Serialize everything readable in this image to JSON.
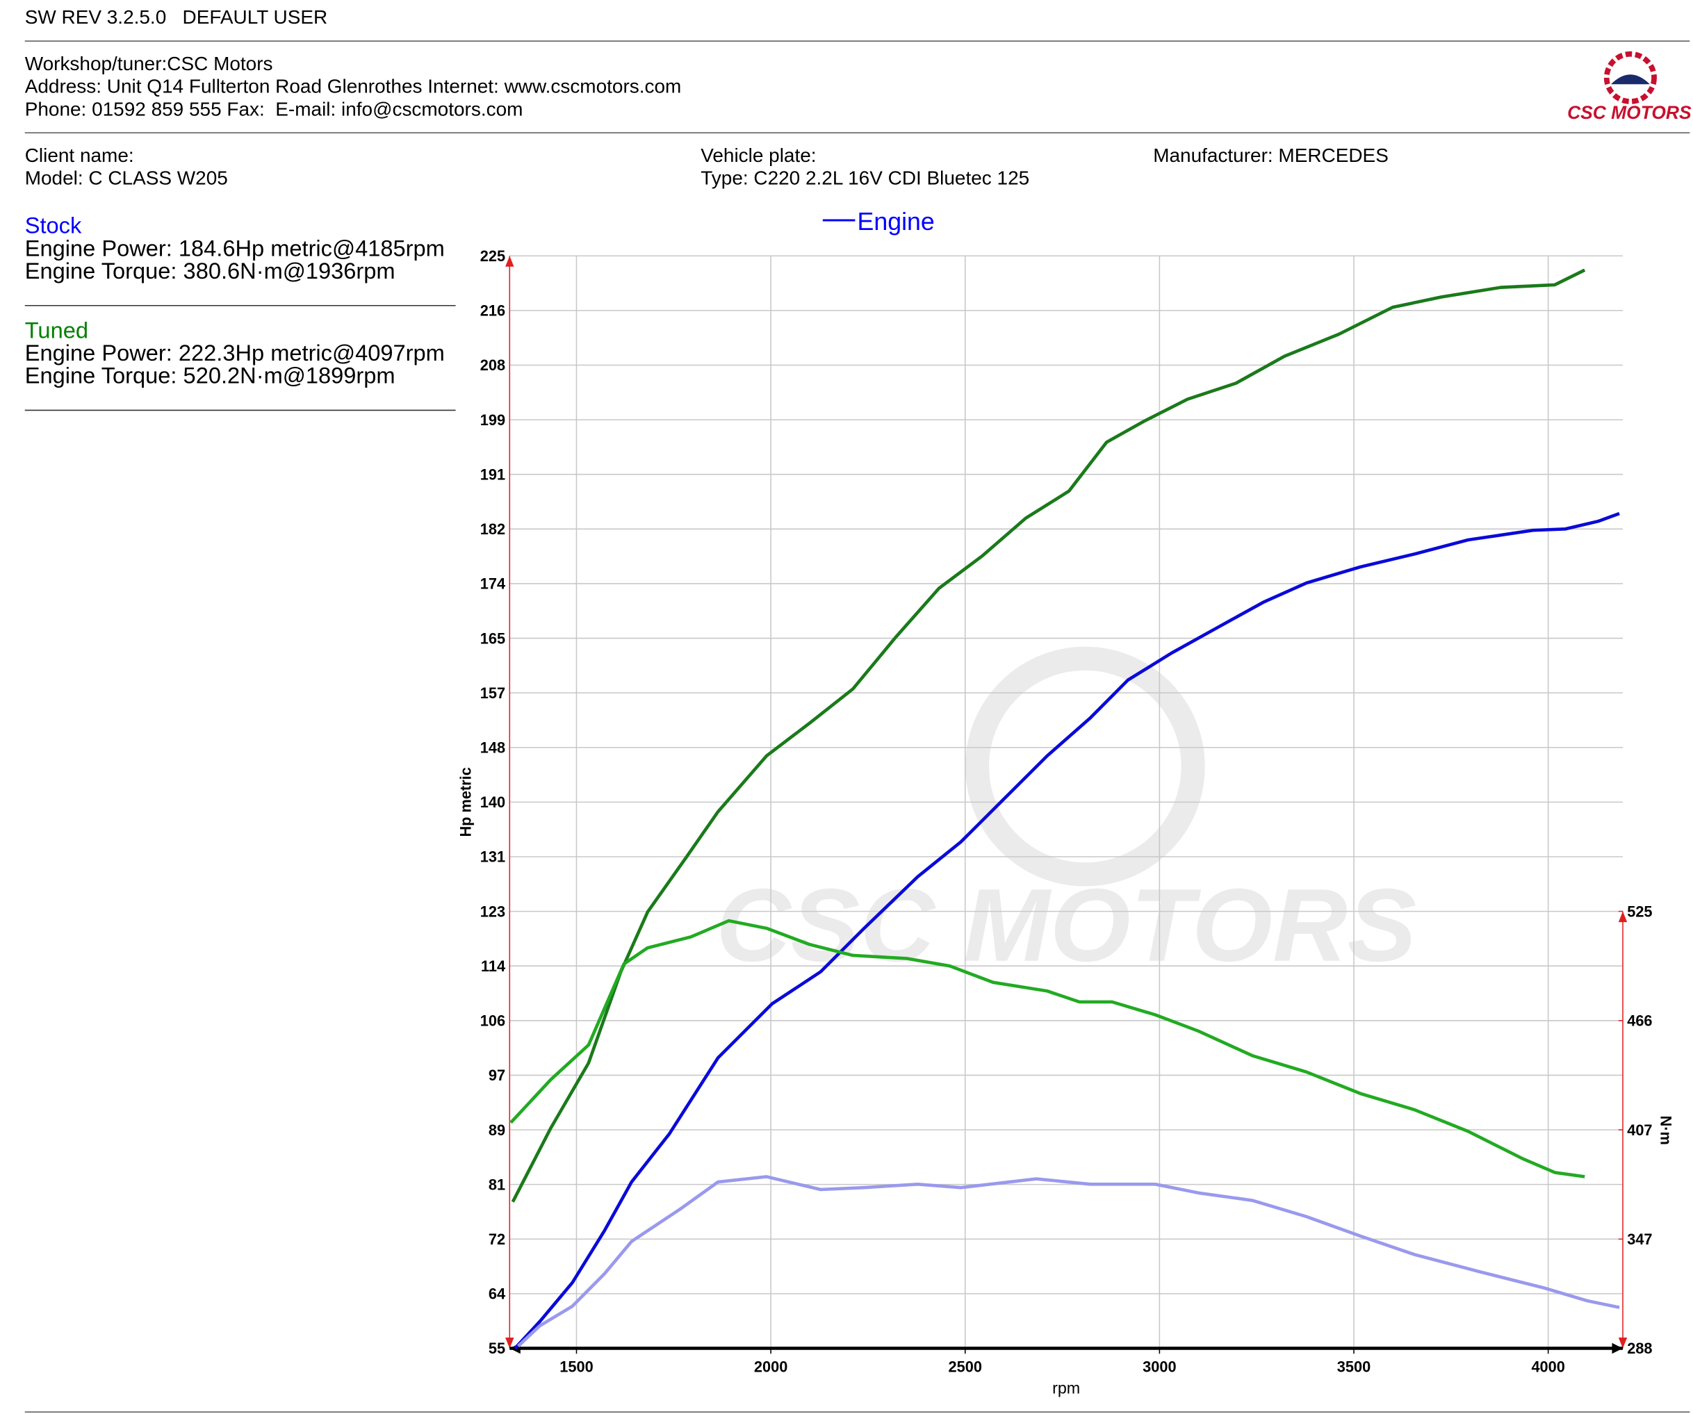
{
  "header": {
    "software": "SW REV 3.2.5.0   DEFAULT USER",
    "workshop": "Workshop/tuner:CSC Motors",
    "address": "Address: Unit Q14 Fullterton Road Glenrothes Internet: www.cscmotors.com",
    "phone": "Phone: 01592 859 555 Fax:  E-mail: info@cscmotors.com",
    "logo": "CSC MOTORS"
  },
  "vehicle": {
    "client": "Client name:",
    "model": "Model: C CLASS W205",
    "plate": "Vehicle plate:",
    "type": "Type: C220 2.2L 16V CDI Bluetec 125",
    "manufacturer": "Manufacturer: MERCEDES"
  },
  "summary": [
    {
      "title": "Stock",
      "color": "#0000ff",
      "power": "Engine Power: 184.6Hp metric@4185rpm",
      "torque": "Engine Torque: 380.6N·m@1936rpm"
    },
    {
      "title": "Tuned",
      "color": "#008000",
      "power": "Engine Power: 222.3Hp metric@4097rpm",
      "torque": "Engine Torque: 520.2N·m@1899rpm"
    }
  ],
  "chart_data": {
    "type": "line",
    "legend": {
      "label": "Engine",
      "color": "#0000ff"
    },
    "watermark": "CSC MOTORS",
    "xlabel": "rpm",
    "ylabel": "Hp metric",
    "y2label": "N·m",
    "grid": true,
    "xlim": [
      1328,
      4192
    ],
    "xticks": [
      1500,
      2000,
      2500,
      3000,
      3500,
      4000
    ],
    "ylim": [
      55,
      225
    ],
    "yticks": [
      55,
      {
        "value": 63.5,
        "label": "64"
      },
      72,
      {
        "value": 80.5,
        "label": "81"
      },
      89,
      {
        "value": 97.5,
        "label": "97"
      },
      106,
      {
        "value": 114.5,
        "label": "114"
      },
      123,
      {
        "value": 131.5,
        "label": "131"
      },
      140,
      {
        "value": 148.5,
        "label": "148"
      },
      157,
      {
        "value": 165.5,
        "label": "165"
      },
      174,
      {
        "value": 182.5,
        "label": "182"
      },
      191,
      {
        "value": 199.5,
        "label": "199"
      },
      208,
      {
        "value": 216.5,
        "label": "216"
      },
      225
    ],
    "y2lim": [
      288,
      880.5
    ],
    "y2ticks": [
      288,
      {
        "value": 347.25,
        "label": "347"
      },
      {
        "value": 406.5,
        "label": "407"
      },
      {
        "value": 465.75,
        "label": "466"
      },
      525
    ],
    "series": [
      {
        "color": "#0a0ad8",
        "x": [
          1342,
          1406,
          1489,
          1572,
          1642,
          1739,
          1864,
          2003,
          2128,
          2239,
          2378,
          2489,
          2600,
          2711,
          2822,
          2919,
          3031,
          3156,
          3267,
          3378,
          3517,
          3656,
          3794,
          3961,
          4044,
          4128,
          4183
        ],
        "values": [
          55,
          59.2,
          65.2,
          73.3,
          80.9,
          88.4,
          100.2,
          108.6,
          113.6,
          120.3,
          128.4,
          133.8,
          140.5,
          147.2,
          153.1,
          159.0,
          163.2,
          167.4,
          171.1,
          174.1,
          176.6,
          178.6,
          180.8,
          182.3,
          182.5,
          183.7,
          184.9
        ]
      },
      {
        "color": "#1a7a1a",
        "x": [
          1336,
          1434,
          1531,
          1614,
          1683,
          1781,
          1864,
          1989,
          2100,
          2211,
          2322,
          2433,
          2544,
          2656,
          2767,
          2864,
          2961,
          3072,
          3197,
          3322,
          3461,
          3600,
          3725,
          3878,
          4017,
          4094
        ],
        "values": [
          77.8,
          89.3,
          99.4,
          113.6,
          122.9,
          131.3,
          138.5,
          147.2,
          152.3,
          157.6,
          165.7,
          173.3,
          178.3,
          184.2,
          188.4,
          196.0,
          199.3,
          202.7,
          205.2,
          209.4,
          212.8,
          217.0,
          218.6,
          220.1,
          220.5,
          222.8
        ]
      },
      {
        "color": "#9999ee",
        "axis": "y2",
        "x": [
          1350,
          1406,
          1489,
          1572,
          1642,
          1767,
          1864,
          1989,
          2128,
          2239,
          2378,
          2489,
          2683,
          2822,
          2989,
          3100,
          3239,
          3378,
          3517,
          3656,
          3822,
          3989,
          4100,
          4183
        ],
        "values": [
          289.2,
          300.3,
          310.8,
          328.4,
          346.0,
          363.5,
          378.2,
          381.1,
          374.1,
          375.2,
          377.0,
          375.2,
          379.9,
          377.0,
          377.0,
          372.3,
          368.2,
          359.4,
          348.9,
          338.9,
          329.6,
          320.8,
          313.8,
          310.2
        ]
      },
      {
        "color": "#22aa22",
        "axis": "y2",
        "x": [
          1331,
          1434,
          1531,
          1622,
          1683,
          1794,
          1892,
          1989,
          2100,
          2211,
          2350,
          2461,
          2572,
          2711,
          2794,
          2878,
          2989,
          3100,
          3239,
          3378,
          3517,
          3656,
          3794,
          3933,
          4017,
          4094
        ],
        "values": [
          410.4,
          433.8,
          452.5,
          496.4,
          505.2,
          511.1,
          519.9,
          515.8,
          507.0,
          501.1,
          499.4,
          495.3,
          486.5,
          481.8,
          475.9,
          475.9,
          468.9,
          460.1,
          446.7,
          437.9,
          426.2,
          417.4,
          405.7,
          391.0,
          383.4,
          381.1
        ]
      }
    ]
  }
}
